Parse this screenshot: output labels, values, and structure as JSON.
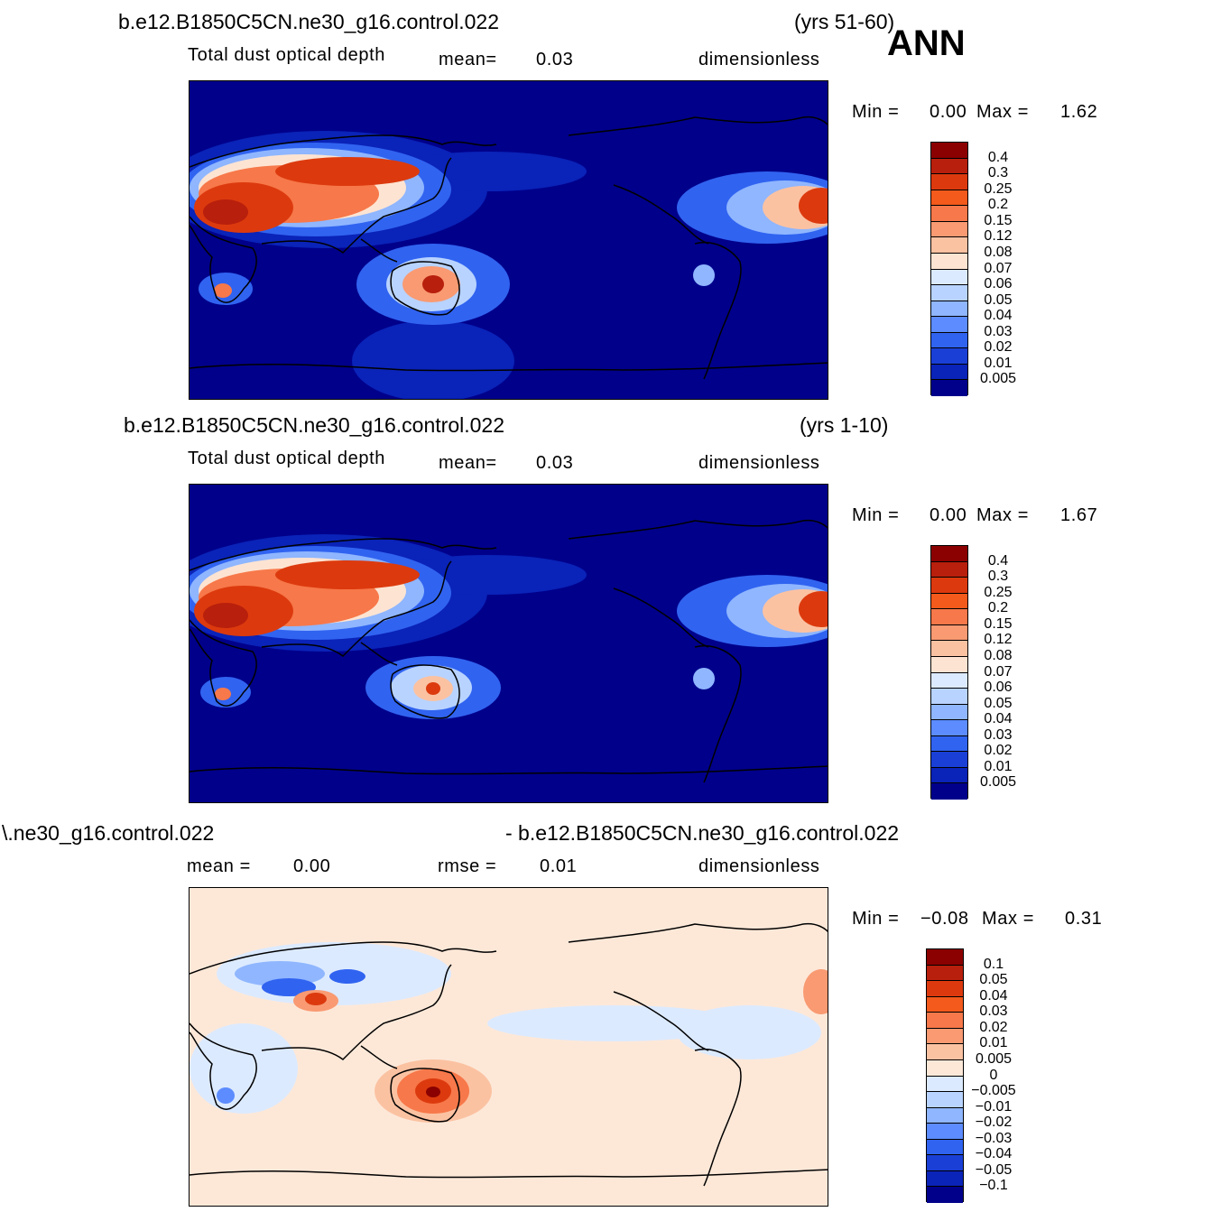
{
  "season": "ANN",
  "panels": [
    {
      "case": "b.e12.B1850C5CN.ne30_g16.control.022",
      "years": "(yrs 51-60)",
      "variable": "Total dust optical depth",
      "stat1_label": "mean=",
      "stat1_value": "0.03",
      "units": "dimensionless",
      "min_label": "Min =",
      "min_value": "0.00",
      "max_label": "Max =",
      "max_value": "1.62"
    },
    {
      "case": "b.e12.B1850C5CN.ne30_g16.control.022",
      "years": "(yrs 1-10)",
      "variable": "Total dust optical depth",
      "stat1_label": "mean=",
      "stat1_value": "0.03",
      "units": "dimensionless",
      "min_label": "Min =",
      "min_value": "0.00",
      "max_label": "Max =",
      "max_value": "1.67"
    },
    {
      "case_left": "\\.ne30_g16.control.022",
      "case_right": "- b.e12.B1850C5CN.ne30_g16.control.022",
      "stat1_label": "mean =",
      "stat1_value": "0.00",
      "stat2_label": "rmse =",
      "stat2_value": "0.01",
      "units": "dimensionless",
      "min_label": "Min =",
      "min_value": "−0.08",
      "max_label": "Max =",
      "max_value": "0.31"
    }
  ],
  "chart_data": [
    {
      "type": "heatmap",
      "title": "Total dust optical depth",
      "colorbar_levels": [
        "0.4",
        "0.3",
        "0.25",
        "0.2",
        "0.15",
        "0.12",
        "0.08",
        "0.07",
        "0.06",
        "0.05",
        "0.04",
        "0.03",
        "0.02",
        "0.01",
        "0.005"
      ],
      "colors": [
        "#8b0000",
        "#b81f0c",
        "#dc3a0e",
        "#f35a1c",
        "#f7784a",
        "#f99a72",
        "#fbc2a2",
        "#fde4d2",
        "#dceaff",
        "#b8d3ff",
        "#8fb6ff",
        "#5c8cff",
        "#3063f0",
        "#1a3fd6",
        "#0a23b8",
        "#00008b"
      ],
      "field_range": [
        0.0,
        1.62
      ]
    },
    {
      "type": "heatmap",
      "title": "Total dust optical depth",
      "colorbar_levels": [
        "0.4",
        "0.3",
        "0.25",
        "0.2",
        "0.15",
        "0.12",
        "0.08",
        "0.07",
        "0.06",
        "0.05",
        "0.04",
        "0.03",
        "0.02",
        "0.01",
        "0.005"
      ],
      "colors": [
        "#8b0000",
        "#b81f0c",
        "#dc3a0e",
        "#f35a1c",
        "#f7784a",
        "#f99a72",
        "#fbc2a2",
        "#fde4d2",
        "#dceaff",
        "#b8d3ff",
        "#8fb6ff",
        "#5c8cff",
        "#3063f0",
        "#1a3fd6",
        "#0a23b8",
        "#00008b"
      ],
      "field_range": [
        0.0,
        1.67
      ]
    },
    {
      "type": "heatmap",
      "title": "",
      "colorbar_levels": [
        "0.1",
        "0.05",
        "0.04",
        "0.03",
        "0.02",
        "0.01",
        "0.005",
        "0",
        "−0.005",
        "−0.01",
        "−0.02",
        "−0.03",
        "−0.04",
        "−0.05",
        "−0.1"
      ],
      "colors": [
        "#8b0000",
        "#b81f0c",
        "#dc3a0e",
        "#f35a1c",
        "#f7784a",
        "#f99a72",
        "#fbc2a2",
        "#fde8d8",
        "#dceaff",
        "#b8d3ff",
        "#8fb6ff",
        "#5c8cff",
        "#3063f0",
        "#1a3fd6",
        "#0a23b8",
        "#00008b"
      ],
      "field_range": [
        -0.08,
        0.31
      ]
    }
  ]
}
